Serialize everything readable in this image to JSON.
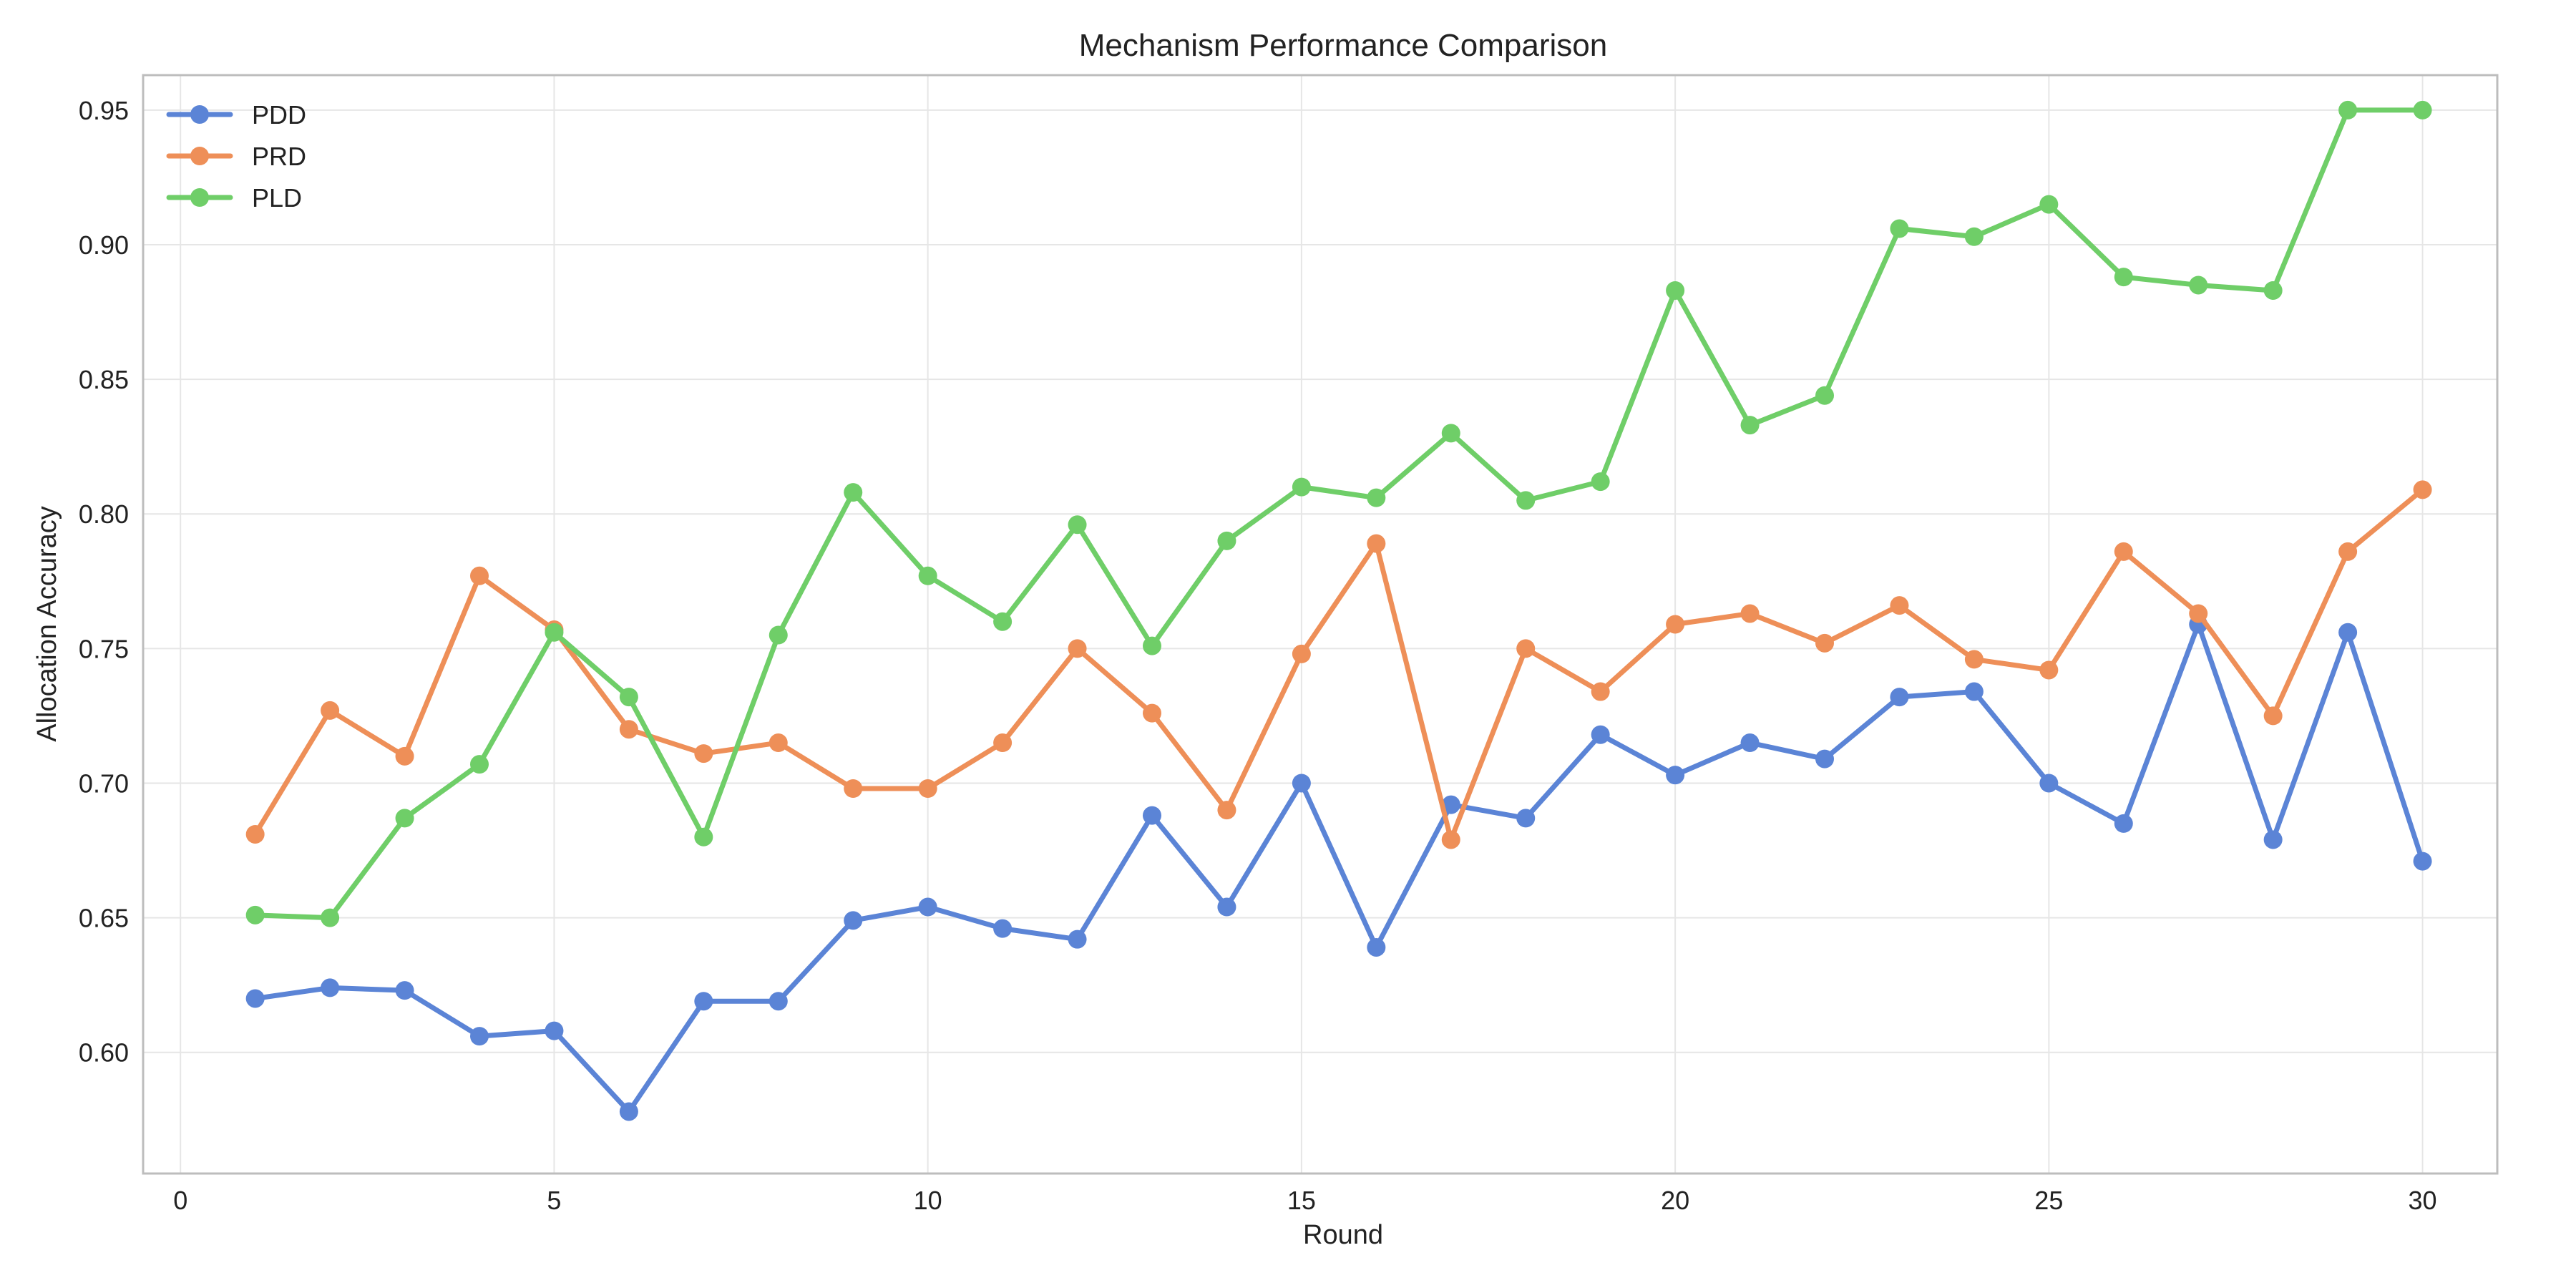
{
  "chart_data": {
    "type": "line",
    "title": "Mechanism Performance Comparison",
    "xlabel": "Round",
    "ylabel": "Allocation Accuracy",
    "xlim": [
      -0.5,
      31.0
    ],
    "ylim": [
      0.555,
      0.963
    ],
    "xticks": [
      0,
      5,
      10,
      15,
      20,
      25,
      30
    ],
    "yticks": [
      0.6,
      0.65,
      0.7,
      0.75,
      0.8,
      0.85,
      0.9,
      0.95
    ],
    "ytick_labels": [
      "0.60",
      "0.65",
      "0.70",
      "0.75",
      "0.80",
      "0.85",
      "0.90",
      "0.95"
    ],
    "grid": true,
    "legend_position": "top-left",
    "x": [
      1,
      2,
      3,
      4,
      5,
      6,
      7,
      8,
      9,
      10,
      11,
      12,
      13,
      14,
      15,
      16,
      17,
      18,
      19,
      20,
      21,
      22,
      23,
      24,
      25,
      26,
      27,
      28,
      29,
      30
    ],
    "series": [
      {
        "name": "PDD",
        "color": "#5b84d6",
        "values": [
          0.62,
          0.624,
          0.623,
          0.606,
          0.608,
          0.578,
          0.619,
          0.619,
          0.649,
          0.654,
          0.646,
          0.642,
          0.688,
          0.654,
          0.7,
          0.639,
          0.692,
          0.687,
          0.718,
          0.703,
          0.715,
          0.709,
          0.732,
          0.734,
          0.7,
          0.685,
          0.759,
          0.679,
          0.756,
          0.671
        ]
      },
      {
        "name": "PRD",
        "color": "#ee8f58",
        "values": [
          0.681,
          0.727,
          0.71,
          0.777,
          0.757,
          0.72,
          0.711,
          0.715,
          0.698,
          0.698,
          0.715,
          0.75,
          0.726,
          0.69,
          0.748,
          0.789,
          0.679,
          0.75,
          0.734,
          0.759,
          0.763,
          0.752,
          0.766,
          0.746,
          0.742,
          0.786,
          0.763,
          0.725,
          0.786,
          0.809
        ]
      },
      {
        "name": "PLD",
        "color": "#6fce68",
        "values": [
          0.651,
          0.65,
          0.687,
          0.707,
          0.756,
          0.732,
          0.68,
          0.755,
          0.808,
          0.777,
          0.76,
          0.796,
          0.751,
          0.79,
          0.81,
          0.806,
          0.83,
          0.805,
          0.812,
          0.883,
          0.833,
          0.844,
          0.906,
          0.903,
          0.915,
          0.888,
          0.885,
          0.883,
          0.95,
          0.95
        ]
      }
    ]
  }
}
